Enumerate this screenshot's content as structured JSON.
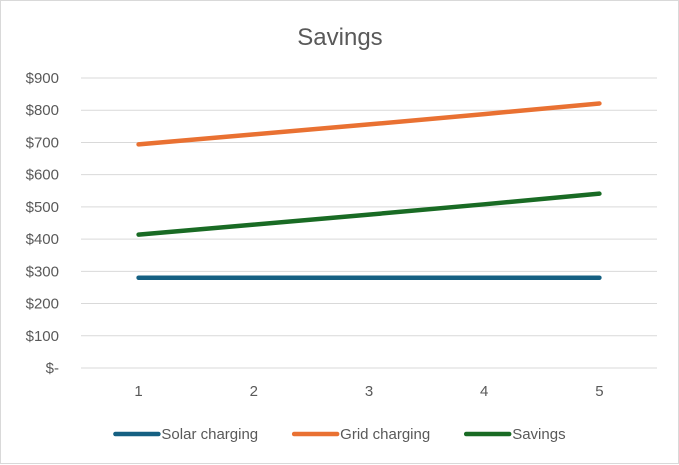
{
  "chart_data": {
    "type": "line",
    "title": "Savings",
    "xlabel": "",
    "ylabel": "",
    "categories": [
      "1",
      "2",
      "3",
      "4",
      "5"
    ],
    "y_tick_labels": [
      "$-",
      "$100",
      "$200",
      "$300",
      "$400",
      "$500",
      "$600",
      "$700",
      "$800",
      "$900"
    ],
    "y_ticks": [
      0,
      100,
      200,
      300,
      400,
      500,
      600,
      700,
      800,
      900
    ],
    "ylim": [
      0,
      900
    ],
    "grid": true,
    "legend_position": "bottom",
    "series": [
      {
        "name": "Solar charging",
        "color": "#156082",
        "values": [
          280,
          280,
          280,
          280,
          280
        ]
      },
      {
        "name": "Grid charging",
        "color": "#E97132",
        "values": [
          694,
          725,
          756,
          788,
          821
        ]
      },
      {
        "name": "Savings",
        "color": "#196B24",
        "values": [
          414,
          445,
          476,
          508,
          541
        ]
      }
    ]
  }
}
